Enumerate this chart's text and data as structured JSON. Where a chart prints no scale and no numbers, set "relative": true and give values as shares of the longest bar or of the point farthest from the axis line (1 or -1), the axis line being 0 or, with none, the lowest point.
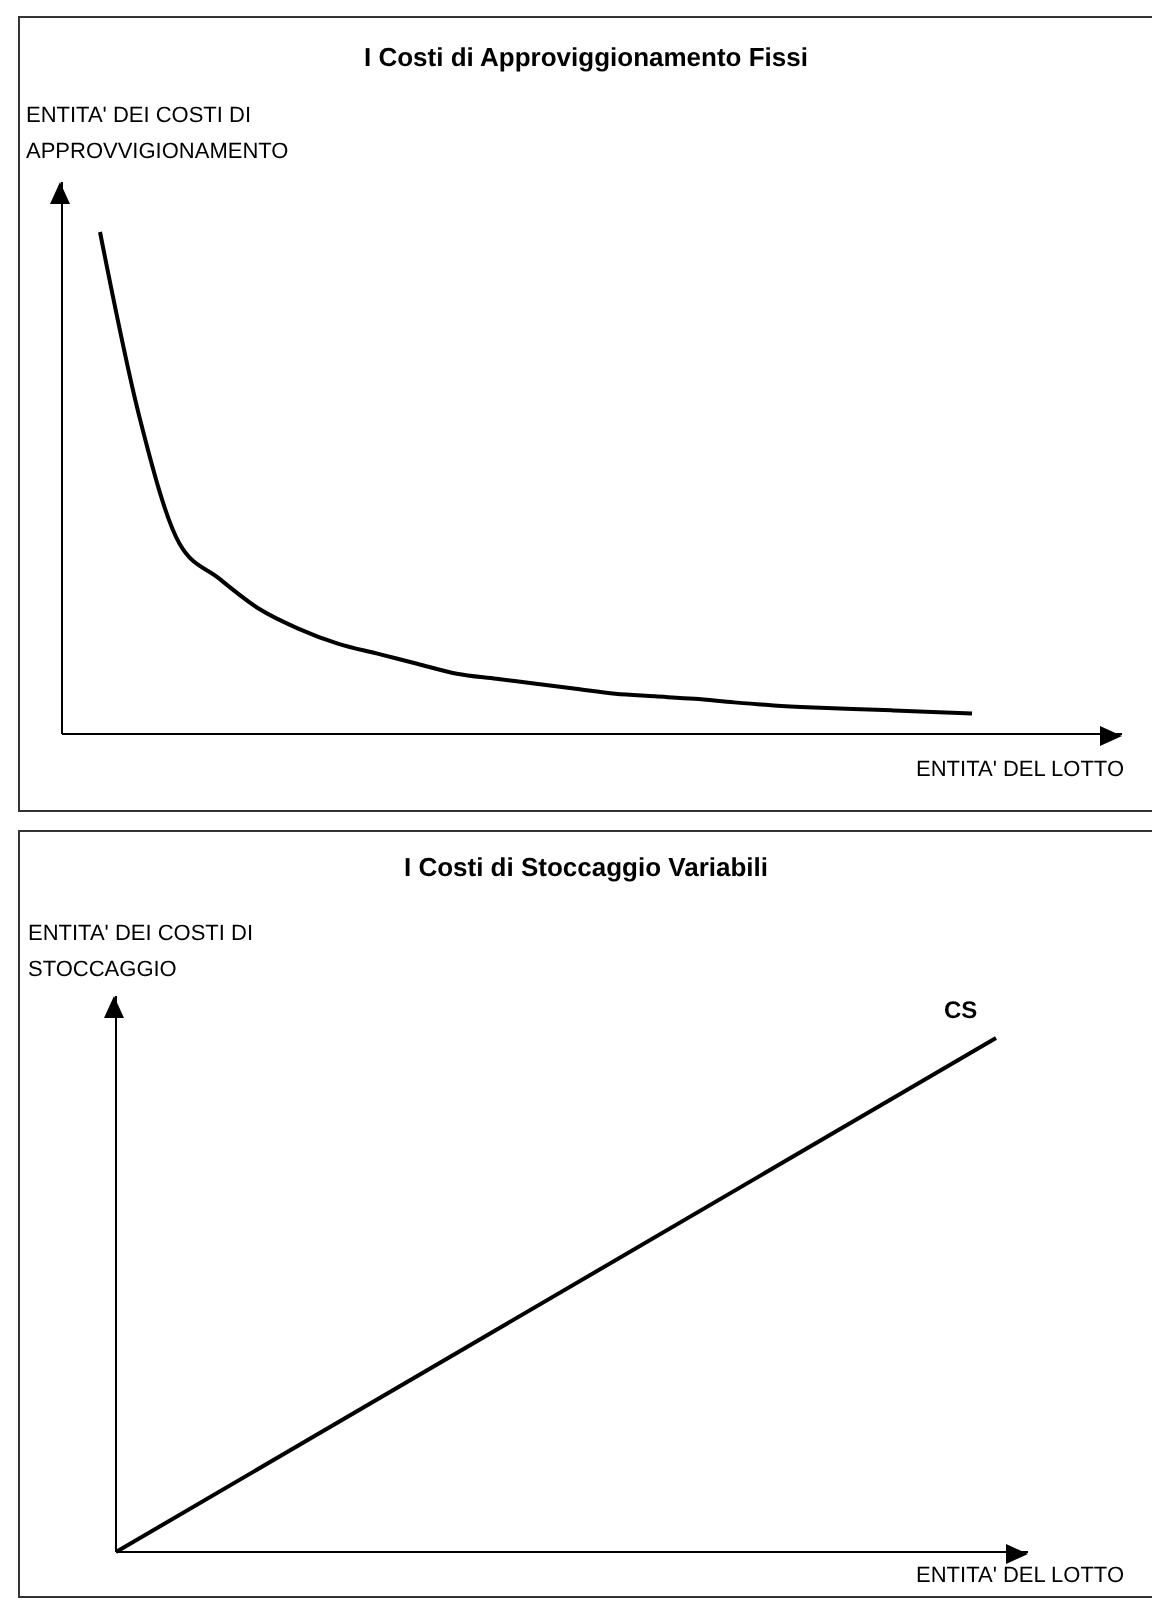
{
  "chart_data": [
    {
      "type": "line",
      "title": "I Costi di Approviggionamento Fissi",
      "xlabel": "ENTITA' DEL LOTTO",
      "ylabel": "ENTITA' DEI COSTI DI APPROVVIGIONAMENTO",
      "relative": true,
      "categories": [
        null,
        null,
        null,
        null,
        null,
        null,
        null,
        null,
        null,
        null,
        null,
        null,
        null,
        null,
        null,
        null,
        null,
        null,
        null,
        null,
        null,
        null,
        null
      ],
      "series": [
        {
          "color": "#000000",
          "values": [
            1.0,
            0.63,
            0.38,
            0.31,
            0.25,
            0.21,
            0.18,
            0.16,
            0.14,
            0.12,
            0.11,
            0.1,
            0.09,
            0.08,
            0.075,
            0.07,
            0.063,
            0.057,
            0.053,
            0.05,
            0.047,
            0.044,
            0.041
          ]
        }
      ]
    },
    {
      "type": "line",
      "title": "I Costi di Stoccaggio Variabili",
      "xlabel": "ENTITA' DEL LOTTO",
      "ylabel": "ENTITA' DEI COSTI DI STOCCAGGIO",
      "relative": true,
      "categories": [
        null,
        null
      ],
      "series": [
        {
          "name": "CS",
          "color": "#000000",
          "values": [
            0,
            1
          ]
        }
      ]
    }
  ]
}
